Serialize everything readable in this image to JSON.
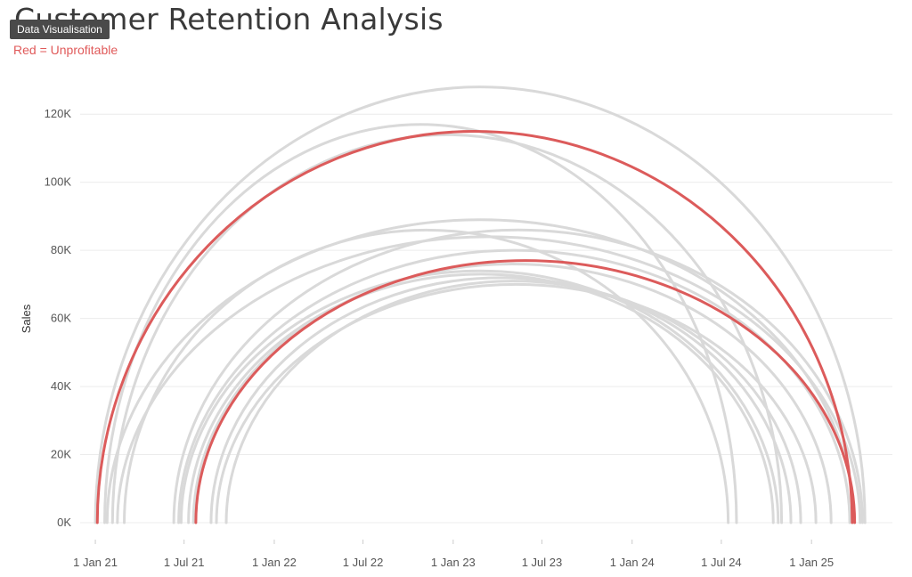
{
  "header": {
    "title": "Customer Retention Analysis",
    "subtitle": "Red = Unprofitable",
    "tooltip": "Data Visualisation"
  },
  "colors": {
    "profitable": "#d9d9d9",
    "unprofitable": "#dc5b5b",
    "grid": "#ececec",
    "axis_text": "#555555"
  },
  "chart_data": {
    "type": "arc",
    "title": "Customer Retention Analysis",
    "subtitle": "Red = Unprofitable",
    "xlabel": "",
    "ylabel": "Sales",
    "ylim": [
      0,
      130000
    ],
    "yticks": [
      0,
      20000,
      40000,
      60000,
      80000,
      100000,
      120000
    ],
    "ytick_labels": [
      "0K",
      "20K",
      "40K",
      "60K",
      "80K",
      "100K",
      "120K"
    ],
    "xlim": [
      "2020-12-01",
      "2025-06-15"
    ],
    "xticks": [
      "2021-01-01",
      "2021-07-01",
      "2022-01-01",
      "2022-07-01",
      "2023-01-01",
      "2023-07-01",
      "2024-01-01",
      "2024-07-01",
      "2025-01-01"
    ],
    "xtick_labels": [
      "1 Jan 21",
      "1 Jul 21",
      "1 Jan 22",
      "1 Jul 22",
      "1 Jan 23",
      "1 Jul 23",
      "1 Jan 24",
      "1 Jul 24",
      "1 Jan 25"
    ],
    "grid": true,
    "arcs": [
      {
        "first_order": "2021-01-01",
        "last_order": "2025-04-20",
        "sales": 128000,
        "unprofitable": false
      },
      {
        "first_order": "2021-01-05",
        "last_order": "2025-03-25",
        "sales": 115000,
        "unprofitable": true
      },
      {
        "first_order": "2021-01-20",
        "last_order": "2024-08-01",
        "sales": 117000,
        "unprofitable": false
      },
      {
        "first_order": "2021-02-05",
        "last_order": "2024-11-01",
        "sales": 114000,
        "unprofitable": false
      },
      {
        "first_order": "2021-03-01",
        "last_order": "2024-07-15",
        "sales": 86000,
        "unprofitable": false
      },
      {
        "first_order": "2021-01-25",
        "last_order": "2025-03-28",
        "sales": 89000,
        "unprofitable": false
      },
      {
        "first_order": "2021-02-15",
        "last_order": "2025-04-10",
        "sales": 84000,
        "unprofitable": false
      },
      {
        "first_order": "2021-06-10",
        "last_order": "2025-04-15",
        "sales": 86000,
        "unprofitable": false
      },
      {
        "first_order": "2021-06-20",
        "last_order": "2025-03-20",
        "sales": 80000,
        "unprofitable": false
      },
      {
        "first_order": "2021-07-10",
        "last_order": "2024-10-15",
        "sales": 73000,
        "unprofitable": false
      },
      {
        "first_order": "2021-07-20",
        "last_order": "2025-02-10",
        "sales": 76000,
        "unprofitable": false
      },
      {
        "first_order": "2021-07-25",
        "last_order": "2025-03-30",
        "sales": 77000,
        "unprofitable": true
      },
      {
        "first_order": "2021-08-25",
        "last_order": "2024-11-20",
        "sales": 72000,
        "unprofitable": false
      },
      {
        "first_order": "2021-09-05",
        "last_order": "2025-01-10",
        "sales": 70000,
        "unprofitable": false
      },
      {
        "first_order": "2021-09-25",
        "last_order": "2024-12-10",
        "sales": 71000,
        "unprofitable": false
      },
      {
        "first_order": "2021-06-25",
        "last_order": "2024-10-25",
        "sales": 74000,
        "unprofitable": false
      }
    ]
  }
}
